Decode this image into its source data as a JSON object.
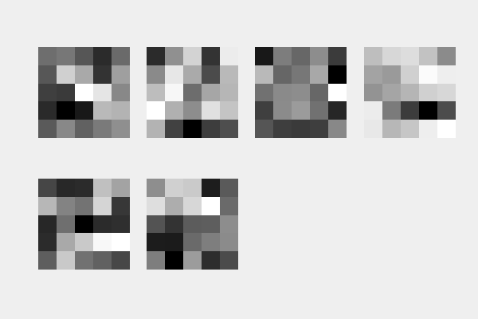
{
  "filters": [
    {
      "name": "filter-1",
      "cells": [
        [
          "#6e6e6e",
          "#777777",
          "#565656",
          "#2b2b2b",
          "#6a6a6a"
        ],
        [
          "#575757",
          "#d0d0d0",
          "#a9a9a9",
          "#333333",
          "#9f9f9f"
        ],
        [
          "#3f3f3f",
          "#3a3a3a",
          "#ffffff",
          "#e5e5e5",
          "#888888"
        ],
        [
          "#2a2a2a",
          "#000000",
          "#181818",
          "#b9b9b9",
          "#b3b3b3"
        ],
        [
          "#5a5a5a",
          "#888888",
          "#616161",
          "#7a7a7a",
          "#8f8f8f"
        ]
      ]
    },
    {
      "name": "filter-2",
      "cells": [
        [
          "#2b2b2b",
          "#909090",
          "#d3d3d3",
          "#333333",
          "#ececec"
        ],
        [
          "#8a8a8a",
          "#e7e7e7",
          "#aaaaaa",
          "#4b4b4b",
          "#b9b9b9"
        ],
        [
          "#bdbdbd",
          "#f7f7f7",
          "#6d6d6d",
          "#a6a6a6",
          "#b6b6b6"
        ],
        [
          "#ffffff",
          "#b0b0b0",
          "#8d8d8d",
          "#e0e0e0",
          "#c4c4c4"
        ],
        [
          "#b3b3b3",
          "#414141",
          "#000000",
          "#3d3d3d",
          "#4e4e4e"
        ]
      ]
    },
    {
      "name": "filter-3",
      "cells": [
        [
          "#181818",
          "#7d7d7d",
          "#676767",
          "#8d8d8d",
          "#3b3b3b"
        ],
        [
          "#b9b9b9",
          "#666666",
          "#777777",
          "#a8a8a8",
          "#000000"
        ],
        [
          "#717171",
          "#8a8a8a",
          "#8d8d8d",
          "#676767",
          "#ffffff"
        ],
        [
          "#3f3f3f",
          "#8b8b8b",
          "#9b9b9b",
          "#717171",
          "#262626"
        ],
        [
          "#555555",
          "#3e3e3e",
          "#3a3a3a",
          "#3e3e3e",
          "#888888"
        ]
      ]
    },
    {
      "name": "filter-4",
      "cells": [
        [
          "#bebebe",
          "#d7d7d7",
          "#dddddd",
          "#c2c2c2",
          "#8b8b8b"
        ],
        [
          "#a3a3a3",
          "#9a9a9a",
          "#d0d0d0",
          "#fbfbfb",
          "#eeeeee"
        ],
        [
          "#939393",
          "#a5a5a5",
          "#b5b5b5",
          "#d0d0d0",
          "#d7d7d7"
        ],
        [
          "#ececec",
          "#7b7b7b",
          "#3c3c3c",
          "#000000",
          "#4c4c4c"
        ],
        [
          "#e8e8e8",
          "#b7b7b7",
          "#c6c6c6",
          "#eeeeee",
          "#ffffff"
        ]
      ]
    },
    {
      "name": "filter-5",
      "cells": [
        [
          "#464646",
          "#282828",
          "#2b2b2b",
          "#c0c0c0",
          "#a3a3a3"
        ],
        [
          "#b7b7b7",
          "#838383",
          "#737373",
          "#d5d5d5",
          "#373737"
        ],
        [
          "#272727",
          "#6f6f6f",
          "#000000",
          "#2b2b2b",
          "#2f2f2f"
        ],
        [
          "#2b2b2b",
          "#a9a9a9",
          "#c9c9c9",
          "#f8f8f8",
          "#ffffff"
        ],
        [
          "#5e5e5e",
          "#c9c9c9",
          "#717171",
          "#616161",
          "#474747"
        ]
      ]
    },
    {
      "name": "filter-6",
      "cells": [
        [
          "#8e8e8e",
          "#d0d0d0",
          "#cacaca",
          "#1d1d1d",
          "#5a5a5a"
        ],
        [
          "#dedede",
          "#adadad",
          "#d7d7d7",
          "#ffffff",
          "#6a6a6a"
        ],
        [
          "#535353",
          "#333333",
          "#5c5c5c",
          "#5e5e5e",
          "#8d8d8d"
        ],
        [
          "#1c1c1c",
          "#1b1b1b",
          "#6a6a6a",
          "#7e7e7e",
          "#8b8b8b"
        ],
        [
          "#7e7e7e",
          "#000000",
          "#9c9c9c",
          "#2d2d2d",
          "#4b4b4b"
        ]
      ]
    }
  ]
}
